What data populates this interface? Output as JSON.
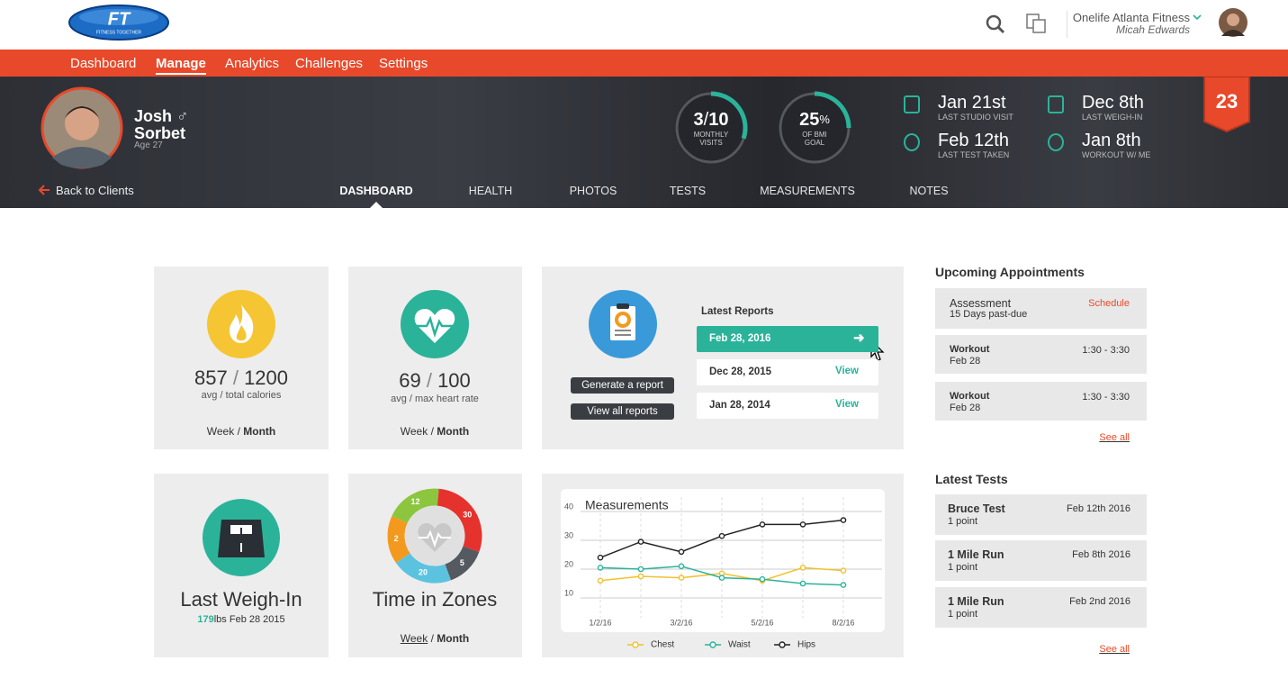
{
  "header": {
    "logo": "FT",
    "logo_sub": "FITNESS TOGETHER",
    "studio": "Onelife Atlanta Fitness",
    "user": "Micah Edwards"
  },
  "nav": {
    "items": [
      "Dashboard",
      "Manage",
      "Analytics",
      "Challenges",
      "Settings"
    ],
    "active": 1
  },
  "client": {
    "first": "Josh",
    "gender": "♂",
    "last": "Sorbet",
    "age": "Age 27",
    "back": "Back to Clients"
  },
  "hero": {
    "visits": {
      "value": 3,
      "sep": "/",
      "total": 10,
      "label": [
        "MONTHLY",
        "VISITS"
      ]
    },
    "bmi": {
      "value": 25,
      "unit": "%",
      "label": [
        "OF BMI",
        "GOAL"
      ]
    },
    "dates": [
      {
        "date": "Jan 21st",
        "label": "LAST STUDIO VISIT"
      },
      {
        "date": "Feb 12th",
        "label": "LAST TEST TAKEN"
      },
      {
        "date": "Dec 8th",
        "label": "LAST WEIGH-IN"
      },
      {
        "date": "Jan 8th",
        "label": "WORKOUT W/ ME"
      }
    ],
    "badge": "23"
  },
  "tabs": {
    "items": [
      "DASHBOARD",
      "HEALTH",
      "PHOTOS",
      "TESTS",
      "MEASUREMENTS",
      "NOTES"
    ],
    "active": 0
  },
  "period": {
    "week": "Week",
    "sep": "/",
    "month": "Month"
  },
  "calories": {
    "value": 857,
    "sep": "/",
    "total": 1200,
    "caption": "avg / total calories"
  },
  "heart": {
    "value": 69,
    "sep": "/",
    "total": 100,
    "caption": "avg / max heart rate"
  },
  "reports": {
    "title": "Latest Reports",
    "generate": "Generate a report",
    "view_all": "View all reports",
    "items": [
      {
        "date": "Feb 28, 2016"
      },
      {
        "date": "Dec 28, 2015",
        "action": "View"
      },
      {
        "date": "Jan 28, 2014",
        "action": "View"
      }
    ]
  },
  "weigh": {
    "title": "Last Weigh-In",
    "value": "179",
    "unit": "lbs",
    "date": "Feb 28 2015"
  },
  "zones": {
    "title": "Time in Zones",
    "labels": [
      "12",
      "30",
      "5",
      "20",
      "2"
    ],
    "colors": [
      "#8cc63f",
      "#e5322d",
      "#555a60",
      "#5bc3df",
      "#f39a1e"
    ]
  },
  "chart_data": {
    "type": "line",
    "title": "Measurements",
    "categories": [
      "1/2/16",
      null,
      "3/2/16",
      null,
      "5/2/16",
      null,
      "8/2/16"
    ],
    "series": [
      {
        "name": "Chest",
        "color": "#f2c12e",
        "values": [
          16,
          17.5,
          17,
          18.5,
          16,
          20.5,
          19.5
        ]
      },
      {
        "name": "Waist",
        "color": "#2bb39a",
        "values": [
          20.5,
          20,
          21,
          17,
          16.5,
          15,
          14.5
        ]
      },
      {
        "name": "Hips",
        "color": "#222222",
        "values": [
          24,
          29.5,
          26,
          31.5,
          35.5,
          35.5,
          37
        ]
      }
    ],
    "ylim": [
      5,
      45
    ],
    "yticks": [
      10,
      20,
      30,
      40
    ],
    "grid": true
  },
  "appointments": {
    "title": "Upcoming Appointments",
    "items": [
      {
        "title": "Assessment",
        "sub": "15 Days past-due",
        "right": "Schedule"
      },
      {
        "title": "Workout",
        "sub": "Feb 28",
        "right": "1:30 - 3:30"
      },
      {
        "title": "Workout",
        "sub": "Feb 28",
        "right": "1:30 - 3:30"
      }
    ],
    "see_all": "See all"
  },
  "tests": {
    "title": "Latest Tests",
    "items": [
      {
        "name": "Bruce Test",
        "points": "1 point",
        "date": "Feb 12th 2016"
      },
      {
        "name": "1 Mile Run",
        "points": "1 point",
        "date": "Feb 8th 2016"
      },
      {
        "name": "1 Mile Run",
        "points": "1 point",
        "date": "Feb 2nd 2016"
      }
    ],
    "see_all": "See all"
  }
}
